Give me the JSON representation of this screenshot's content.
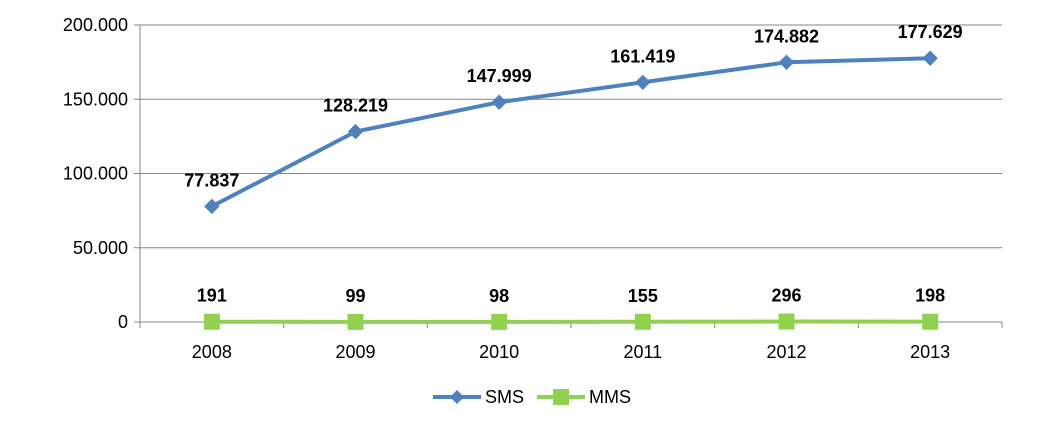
{
  "chart_data": {
    "type": "line",
    "categories": [
      "2008",
      "2009",
      "2010",
      "2011",
      "2012",
      "2013"
    ],
    "series": [
      {
        "name": "SMS",
        "values": [
          77837,
          128219,
          147999,
          161419,
          174882,
          177629
        ],
        "labels": [
          "77.837",
          "128.219",
          "147.999",
          "161.419",
          "174.882",
          "177.629"
        ],
        "color": "#4F81BD",
        "marker": "diamond"
      },
      {
        "name": "MMS",
        "values": [
          191,
          99,
          98,
          155,
          296,
          198
        ],
        "labels": [
          "191",
          "99",
          "98",
          "155",
          "296",
          "198"
        ],
        "color": "#92D050",
        "marker": "square"
      }
    ],
    "ylim": [
      0,
      200000
    ],
    "yticks": [
      0,
      50000,
      100000,
      150000,
      200000
    ],
    "ytick_labels": [
      "0",
      "50.000",
      "100.000",
      "150.000",
      "200.000"
    ],
    "grid": true,
    "legend": "bottom",
    "title": "",
    "xlabel": "",
    "ylabel": ""
  }
}
